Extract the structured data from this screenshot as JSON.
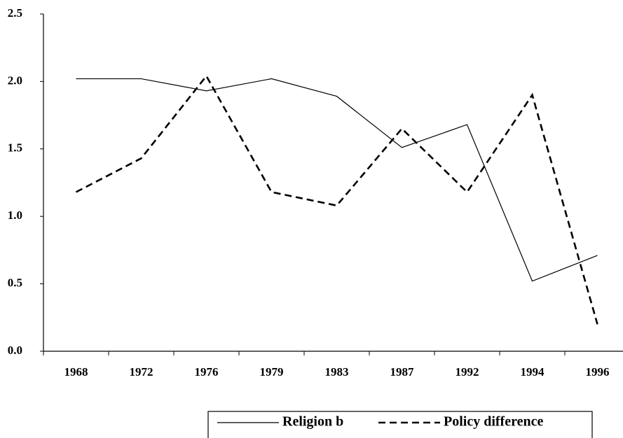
{
  "chart_data": {
    "type": "line",
    "categories": [
      "1968",
      "1972",
      "1976",
      "1979",
      "1983",
      "1987",
      "1992",
      "1994",
      "1996"
    ],
    "series": [
      {
        "name": "Religion b",
        "color": "#000000",
        "dash": false,
        "values": [
          2.02,
          2.02,
          1.93,
          2.02,
          1.89,
          1.51,
          1.68,
          0.52,
          0.71
        ]
      },
      {
        "name": "Policy difference",
        "color": "#000000",
        "dash": true,
        "values": [
          1.18,
          1.43,
          2.04,
          1.18,
          1.08,
          1.65,
          1.18,
          1.9,
          0.2
        ]
      }
    ],
    "ylim": [
      0,
      2.5
    ],
    "yticks": [
      {
        "value": 0,
        "label": "0.0"
      },
      0.5,
      {
        "value": 1,
        "label": "1.0"
      },
      1.5,
      {
        "value": 2,
        "label": "2.0"
      },
      2.5
    ],
    "grid": false,
    "legend": "bottom"
  }
}
